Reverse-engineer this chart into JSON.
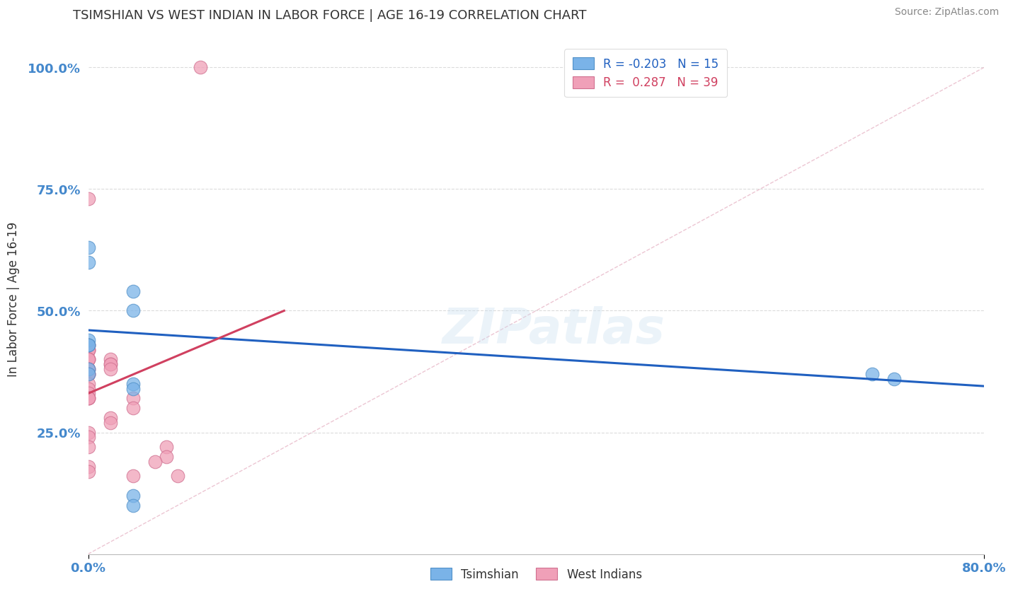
{
  "title": "TSIMSHIAN VS WEST INDIAN IN LABOR FORCE | AGE 16-19 CORRELATION CHART",
  "source": "Source: ZipAtlas.com",
  "ylabel": "In Labor Force | Age 16-19",
  "xlim": [
    0.0,
    0.8
  ],
  "ylim": [
    0.0,
    1.05
  ],
  "watermark": "ZIPatlas",
  "tsimshian_scatter": [
    [
      0.0,
      0.63
    ],
    [
      0.0,
      0.6
    ],
    [
      0.04,
      0.54
    ],
    [
      0.04,
      0.5
    ],
    [
      0.0,
      0.44
    ],
    [
      0.0,
      0.43
    ],
    [
      0.0,
      0.43
    ],
    [
      0.0,
      0.38
    ],
    [
      0.0,
      0.37
    ],
    [
      0.04,
      0.35
    ],
    [
      0.04,
      0.34
    ],
    [
      0.7,
      0.37
    ],
    [
      0.72,
      0.36
    ],
    [
      0.04,
      0.12
    ],
    [
      0.04,
      0.1
    ]
  ],
  "west_indian_scatter": [
    [
      0.1,
      1.0
    ],
    [
      0.0,
      0.73
    ],
    [
      0.0,
      0.43
    ],
    [
      0.0,
      0.43
    ],
    [
      0.0,
      0.42
    ],
    [
      0.0,
      0.42
    ],
    [
      0.0,
      0.42
    ],
    [
      0.0,
      0.4
    ],
    [
      0.0,
      0.4
    ],
    [
      0.0,
      0.4
    ],
    [
      0.02,
      0.4
    ],
    [
      0.02,
      0.39
    ],
    [
      0.02,
      0.39
    ],
    [
      0.02,
      0.38
    ],
    [
      0.0,
      0.38
    ],
    [
      0.0,
      0.38
    ],
    [
      0.0,
      0.37
    ],
    [
      0.0,
      0.37
    ],
    [
      0.0,
      0.37
    ],
    [
      0.0,
      0.35
    ],
    [
      0.0,
      0.34
    ],
    [
      0.0,
      0.33
    ],
    [
      0.0,
      0.32
    ],
    [
      0.0,
      0.32
    ],
    [
      0.0,
      0.32
    ],
    [
      0.04,
      0.32
    ],
    [
      0.04,
      0.3
    ],
    [
      0.02,
      0.28
    ],
    [
      0.02,
      0.27
    ],
    [
      0.0,
      0.25
    ],
    [
      0.0,
      0.24
    ],
    [
      0.0,
      0.22
    ],
    [
      0.07,
      0.22
    ],
    [
      0.07,
      0.2
    ],
    [
      0.06,
      0.19
    ],
    [
      0.0,
      0.18
    ],
    [
      0.0,
      0.17
    ],
    [
      0.04,
      0.16
    ],
    [
      0.08,
      0.16
    ]
  ],
  "blue_line_x": [
    0.0,
    0.8
  ],
  "blue_line_y": [
    0.46,
    0.345
  ],
  "pink_line_x": [
    0.0,
    0.175
  ],
  "pink_line_y": [
    0.33,
    0.5
  ],
  "diag_line_x": [
    0.0,
    0.8
  ],
  "diag_line_y": [
    0.0,
    1.0
  ],
  "tsimshian_color": "#7ab3e8",
  "west_indian_color": "#f0a0b8",
  "tsimshian_edge_color": "#5090c8",
  "west_indian_edge_color": "#d07090",
  "blue_line_color": "#2060c0",
  "pink_line_color": "#d04060",
  "diag_line_color": "#e8b8c8",
  "background_color": "#ffffff",
  "grid_color": "#cccccc",
  "title_color": "#333333",
  "axis_label_color": "#4488cc",
  "source_color": "#888888",
  "legend_r_blue": "R = -0.203",
  "legend_n_blue": "N = 15",
  "legend_r_pink": "R =  0.287",
  "legend_n_pink": "N = 39",
  "watermark_color": "#c8dff0",
  "watermark_alpha": 0.35
}
